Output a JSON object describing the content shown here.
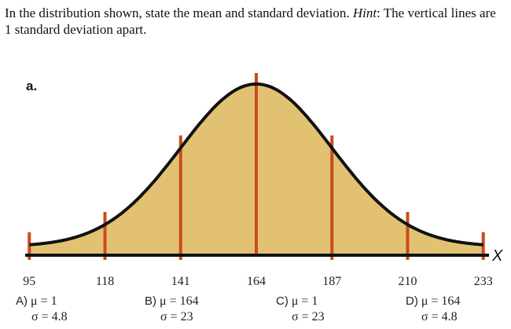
{
  "question": {
    "part1": "In the distribution shown, state the mean and standard deviation. ",
    "hint_label": "Hint",
    "part2": ": The vertical lines are 1 standard deviation apart."
  },
  "colors": {
    "fill": "#e2c272",
    "curve": "#111111",
    "vline": "#cc4a1f",
    "axis": "#111111"
  },
  "chart_data": {
    "type": "area",
    "panel_label": "a.",
    "x_axis_label": "X",
    "mean": 164,
    "sd": 23,
    "xlim": [
      88,
      240
    ],
    "tick_values": [
      95,
      118,
      141,
      164,
      187,
      210,
      233
    ],
    "tick_labels": [
      "95",
      "118",
      "141",
      "164",
      "187",
      "210",
      "233"
    ]
  },
  "choices": [
    {
      "letter": "A)",
      "mu": "μ = 1",
      "sigma": "σ = 4.8"
    },
    {
      "letter": "B)",
      "mu": "μ = 164",
      "sigma": "σ = 23"
    },
    {
      "letter": "C)",
      "mu": "μ = 1",
      "sigma": "σ = 23"
    },
    {
      "letter": "D)",
      "mu": "μ = 164",
      "sigma": "σ = 4.8"
    }
  ]
}
